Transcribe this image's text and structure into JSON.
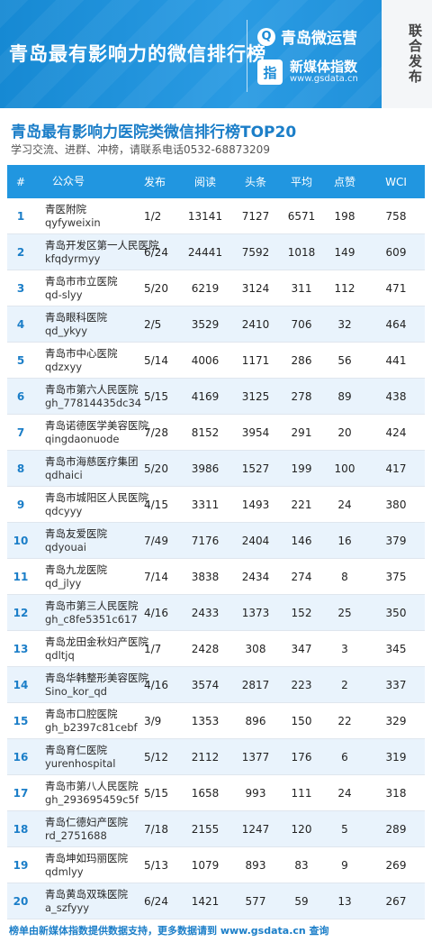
{
  "banner": {
    "title": "青岛最有影响力的微信排行榜",
    "brand1": "青岛微运营",
    "brand1_logo": "Q",
    "brand2": "新媒体指数",
    "brand2_logo": "指",
    "brand2_url": "www.gsdata.cn",
    "side_tab": "联合发布"
  },
  "title": "青岛最有影响力医院类微信排行榜TOP20",
  "subtitle": "学习交流、进群、冲榜，请联系电话0532-68873209",
  "columns": [
    "#",
    "公众号",
    "发布",
    "阅读",
    "头条",
    "平均",
    "点赞",
    "WCI"
  ],
  "rows": [
    {
      "rank": "1",
      "name": "青医附院",
      "id": "qyfyweixin",
      "pub": "1/2",
      "read": "13141",
      "head": "7127",
      "avg": "6571",
      "like": "198",
      "wci": "758"
    },
    {
      "rank": "2",
      "name": "青岛开发区第一人民医院",
      "id": "kfqdyrmyy",
      "pub": "6/24",
      "read": "24441",
      "head": "7592",
      "avg": "1018",
      "like": "149",
      "wci": "609"
    },
    {
      "rank": "3",
      "name": "青岛市市立医院",
      "id": "qd-slyy",
      "pub": "5/20",
      "read": "6219",
      "head": "3124",
      "avg": "311",
      "like": "112",
      "wci": "471"
    },
    {
      "rank": "4",
      "name": "青岛眼科医院",
      "id": "qd_ykyy",
      "pub": "2/5",
      "read": "3529",
      "head": "2410",
      "avg": "706",
      "like": "32",
      "wci": "464"
    },
    {
      "rank": "5",
      "name": "青岛市中心医院",
      "id": "qdzxyy",
      "pub": "5/14",
      "read": "4006",
      "head": "1171",
      "avg": "286",
      "like": "56",
      "wci": "441"
    },
    {
      "rank": "6",
      "name": "青岛市第六人民医院",
      "id": "gh_77814435dc34",
      "pub": "5/15",
      "read": "4169",
      "head": "3125",
      "avg": "278",
      "like": "89",
      "wci": "438"
    },
    {
      "rank": "7",
      "name": "青岛诺德医学美容医院",
      "id": "qingdaonuode",
      "pub": "7/28",
      "read": "8152",
      "head": "3954",
      "avg": "291",
      "like": "20",
      "wci": "424"
    },
    {
      "rank": "8",
      "name": "青岛市海慈医疗集团",
      "id": "qdhaici",
      "pub": "5/20",
      "read": "3986",
      "head": "1527",
      "avg": "199",
      "like": "100",
      "wci": "417"
    },
    {
      "rank": "9",
      "name": "青岛市城阳区人民医院",
      "id": "qdcyyy",
      "pub": "4/15",
      "read": "3311",
      "head": "1493",
      "avg": "221",
      "like": "24",
      "wci": "380"
    },
    {
      "rank": "10",
      "name": "青岛友爱医院",
      "id": "qdyouai",
      "pub": "7/49",
      "read": "7176",
      "head": "2404",
      "avg": "146",
      "like": "16",
      "wci": "379"
    },
    {
      "rank": "11",
      "name": "青岛九龙医院",
      "id": "qd_jlyy",
      "pub": "7/14",
      "read": "3838",
      "head": "2434",
      "avg": "274",
      "like": "8",
      "wci": "375"
    },
    {
      "rank": "12",
      "name": "青岛市第三人民医院",
      "id": "gh_c8fe5351c617",
      "pub": "4/16",
      "read": "2433",
      "head": "1373",
      "avg": "152",
      "like": "25",
      "wci": "350"
    },
    {
      "rank": "13",
      "name": "青岛龙田金秋妇产医院",
      "id": "qdltjq",
      "pub": "1/7",
      "read": "2428",
      "head": "308",
      "avg": "347",
      "like": "3",
      "wci": "345"
    },
    {
      "rank": "14",
      "name": "青岛华韩整形美容医院",
      "id": "Sino_kor_qd",
      "pub": "4/16",
      "read": "3574",
      "head": "2817",
      "avg": "223",
      "like": "2",
      "wci": "337"
    },
    {
      "rank": "15",
      "name": "青岛市口腔医院",
      "id": "gh_b2397c81cebf",
      "pub": "3/9",
      "read": "1353",
      "head": "896",
      "avg": "150",
      "like": "22",
      "wci": "329"
    },
    {
      "rank": "16",
      "name": "青岛育仁医院",
      "id": "yurenhospital",
      "pub": "5/12",
      "read": "2112",
      "head": "1377",
      "avg": "176",
      "like": "6",
      "wci": "319"
    },
    {
      "rank": "17",
      "name": "青岛市第八人民医院",
      "id": "gh_293695459c5f",
      "pub": "5/15",
      "read": "1658",
      "head": "993",
      "avg": "111",
      "like": "24",
      "wci": "318"
    },
    {
      "rank": "18",
      "name": "青岛仁德妇产医院",
      "id": "rd_2751688",
      "pub": "7/18",
      "read": "2155",
      "head": "1247",
      "avg": "120",
      "like": "5",
      "wci": "289"
    },
    {
      "rank": "19",
      "name": "青岛坤如玛丽医院",
      "id": "qdmlyy",
      "pub": "5/13",
      "read": "1079",
      "head": "893",
      "avg": "83",
      "like": "9",
      "wci": "269"
    },
    {
      "rank": "20",
      "name": "青岛黄岛双珠医院",
      "id": "a_szfyyy",
      "pub": "6/24",
      "read": "1421",
      "head": "577",
      "avg": "59",
      "like": "13",
      "wci": "267"
    }
  ],
  "footer": "榜单由新媒体指数提供数据支持，更多数据请到 www.gsdata.cn 查询",
  "colors": {
    "accent": "#1b7ec8",
    "header_bg": "#2196e0",
    "row_alt": "#e9f3fc"
  }
}
